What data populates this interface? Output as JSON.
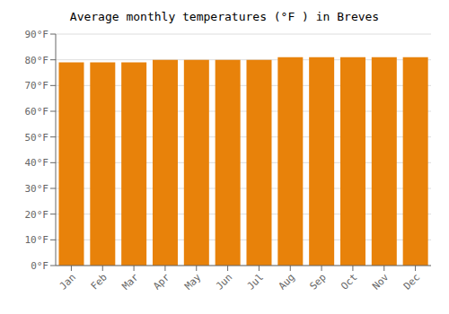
{
  "chart_data": {
    "type": "bar",
    "title": "Average monthly temperatures (°F ) in Breves",
    "categories": [
      "Jan",
      "Feb",
      "Mar",
      "Apr",
      "May",
      "Jun",
      "Jul",
      "Aug",
      "Sep",
      "Oct",
      "Nov",
      "Dec"
    ],
    "values": [
      79,
      79,
      79,
      80,
      80,
      80,
      80,
      81,
      81,
      81,
      81,
      81
    ],
    "color": "#E8820A",
    "ylim": [
      0,
      90
    ],
    "yticks": [
      {
        "value": 0,
        "label": "0°F"
      },
      {
        "value": 10,
        "label": "10°F"
      },
      {
        "value": 20,
        "label": "20°F"
      },
      {
        "value": 30,
        "label": "30°F"
      },
      {
        "value": 40,
        "label": "40°F"
      },
      {
        "value": 50,
        "label": "50°F"
      },
      {
        "value": 60,
        "label": "60°F"
      },
      {
        "value": 70,
        "label": "70°F"
      },
      {
        "value": 80,
        "label": "80°F"
      },
      {
        "value": 90,
        "label": "90°F"
      }
    ],
    "grid": true
  }
}
